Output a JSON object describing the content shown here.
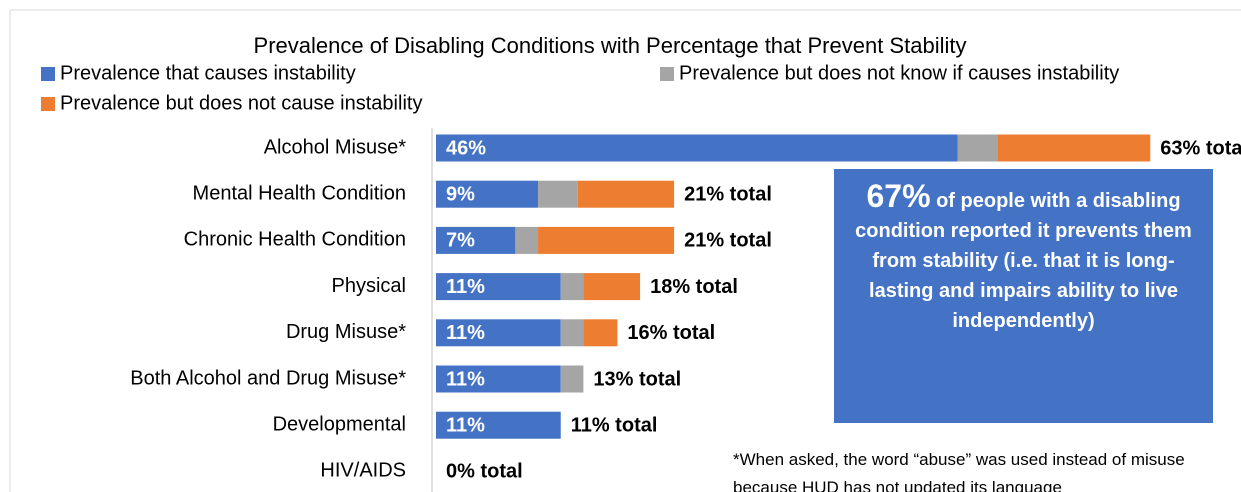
{
  "chart_data": {
    "type": "stacked-bar-horizontal",
    "title": "Prevalence of Disabling Conditions with Percentage that Prevent Stability",
    "categories": [
      "Alcohol Misuse*",
      "Mental Health Condition",
      "Chronic Health Condition",
      "Physical",
      "Drug Misuse*",
      "Both Alcohol and Drug Misuse*",
      "Developmental",
      "HIV/AIDS"
    ],
    "series": [
      {
        "name": "Prevalence that causes instability",
        "color": "#4472c4",
        "values": [
          46,
          9,
          7,
          11,
          11,
          11,
          11,
          0
        ],
        "value_labels": [
          "46%",
          "9%",
          "7%",
          "11%",
          "11%",
          "11%",
          "11%",
          null
        ]
      },
      {
        "name": "Prevalence but does not know if causes instability",
        "color": "#a5a5a5",
        "values": [
          3.5,
          3.5,
          2,
          2,
          2,
          2,
          0,
          0
        ]
      },
      {
        "name": "Prevalence but does not cause instability",
        "color": "#ed7d31",
        "values": [
          13.5,
          8.5,
          12,
          5,
          3,
          0,
          0,
          0
        ]
      }
    ],
    "totals": [
      63,
      21,
      21,
      18,
      16,
      13,
      11,
      0
    ],
    "total_labels": [
      "63% total",
      "21% total",
      "21% total",
      "18% total",
      "16% total",
      "13% total",
      "11% total",
      "0% total"
    ],
    "xlim": [
      0,
      71
    ],
    "callout": {
      "highlight": "67%",
      "text": "of people with a disabling condition reported it prevents them from stability (i.e. that it is long-lasting and impairs ability to live independently)"
    },
    "footnote": "*When asked, the word “abuse” was used instead of misuse because HUD has not updated its language"
  }
}
